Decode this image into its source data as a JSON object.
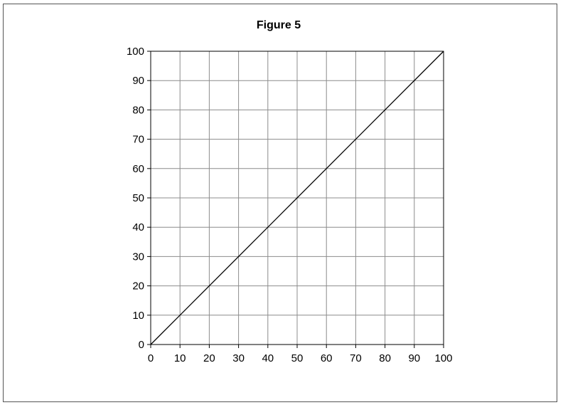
{
  "chart_data": {
    "type": "line",
    "title": "Figure 5",
    "xlabel": "",
    "ylabel": "",
    "xlim": [
      0,
      100
    ],
    "ylim": [
      0,
      100
    ],
    "xticks": [
      0,
      10,
      20,
      30,
      40,
      50,
      60,
      70,
      80,
      90,
      100
    ],
    "yticks": [
      0,
      10,
      20,
      30,
      40,
      50,
      60,
      70,
      80,
      90,
      100
    ],
    "grid": true,
    "series": [
      {
        "x": [
          0,
          100
        ],
        "y": [
          0,
          100
        ],
        "color": "#000000"
      }
    ]
  },
  "colors": {
    "grid": "#8c8c8c",
    "axis": "#000000",
    "frame": "#555555"
  }
}
